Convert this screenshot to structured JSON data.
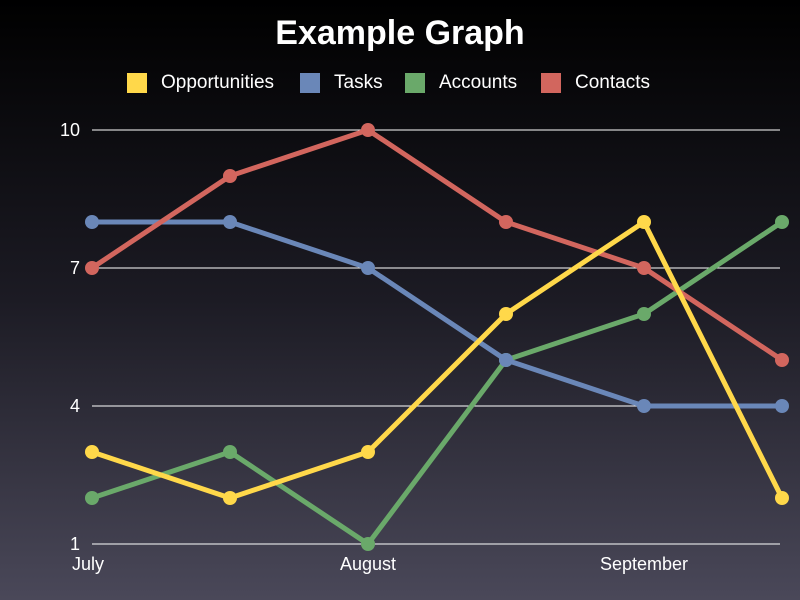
{
  "chart_data": {
    "type": "line",
    "title": "Example Graph",
    "xlabel": "",
    "ylabel": "",
    "x": [
      0,
      1,
      2,
      3,
      4,
      5
    ],
    "x_tick_labels": [
      {
        "x": 0,
        "label": "July"
      },
      {
        "x": 2,
        "label": "August"
      },
      {
        "x": 4,
        "label": "September"
      }
    ],
    "y_ticks": [
      1,
      4,
      7,
      10
    ],
    "ylim": [
      1,
      10
    ],
    "grid": true,
    "legend_position": "top",
    "series": [
      {
        "name": "Opportunities",
        "color": "#ffd84a",
        "values": [
          3,
          2,
          3,
          6,
          8,
          2
        ]
      },
      {
        "name": "Tasks",
        "color": "#6a87b8",
        "values": [
          8,
          8,
          7,
          5,
          4,
          4
        ]
      },
      {
        "name": "Accounts",
        "color": "#6aa96a",
        "values": [
          2,
          3,
          1,
          5,
          6,
          8
        ]
      },
      {
        "name": "Contacts",
        "color": "#d2665e",
        "values": [
          7,
          9,
          10,
          8,
          7,
          5
        ]
      }
    ]
  }
}
